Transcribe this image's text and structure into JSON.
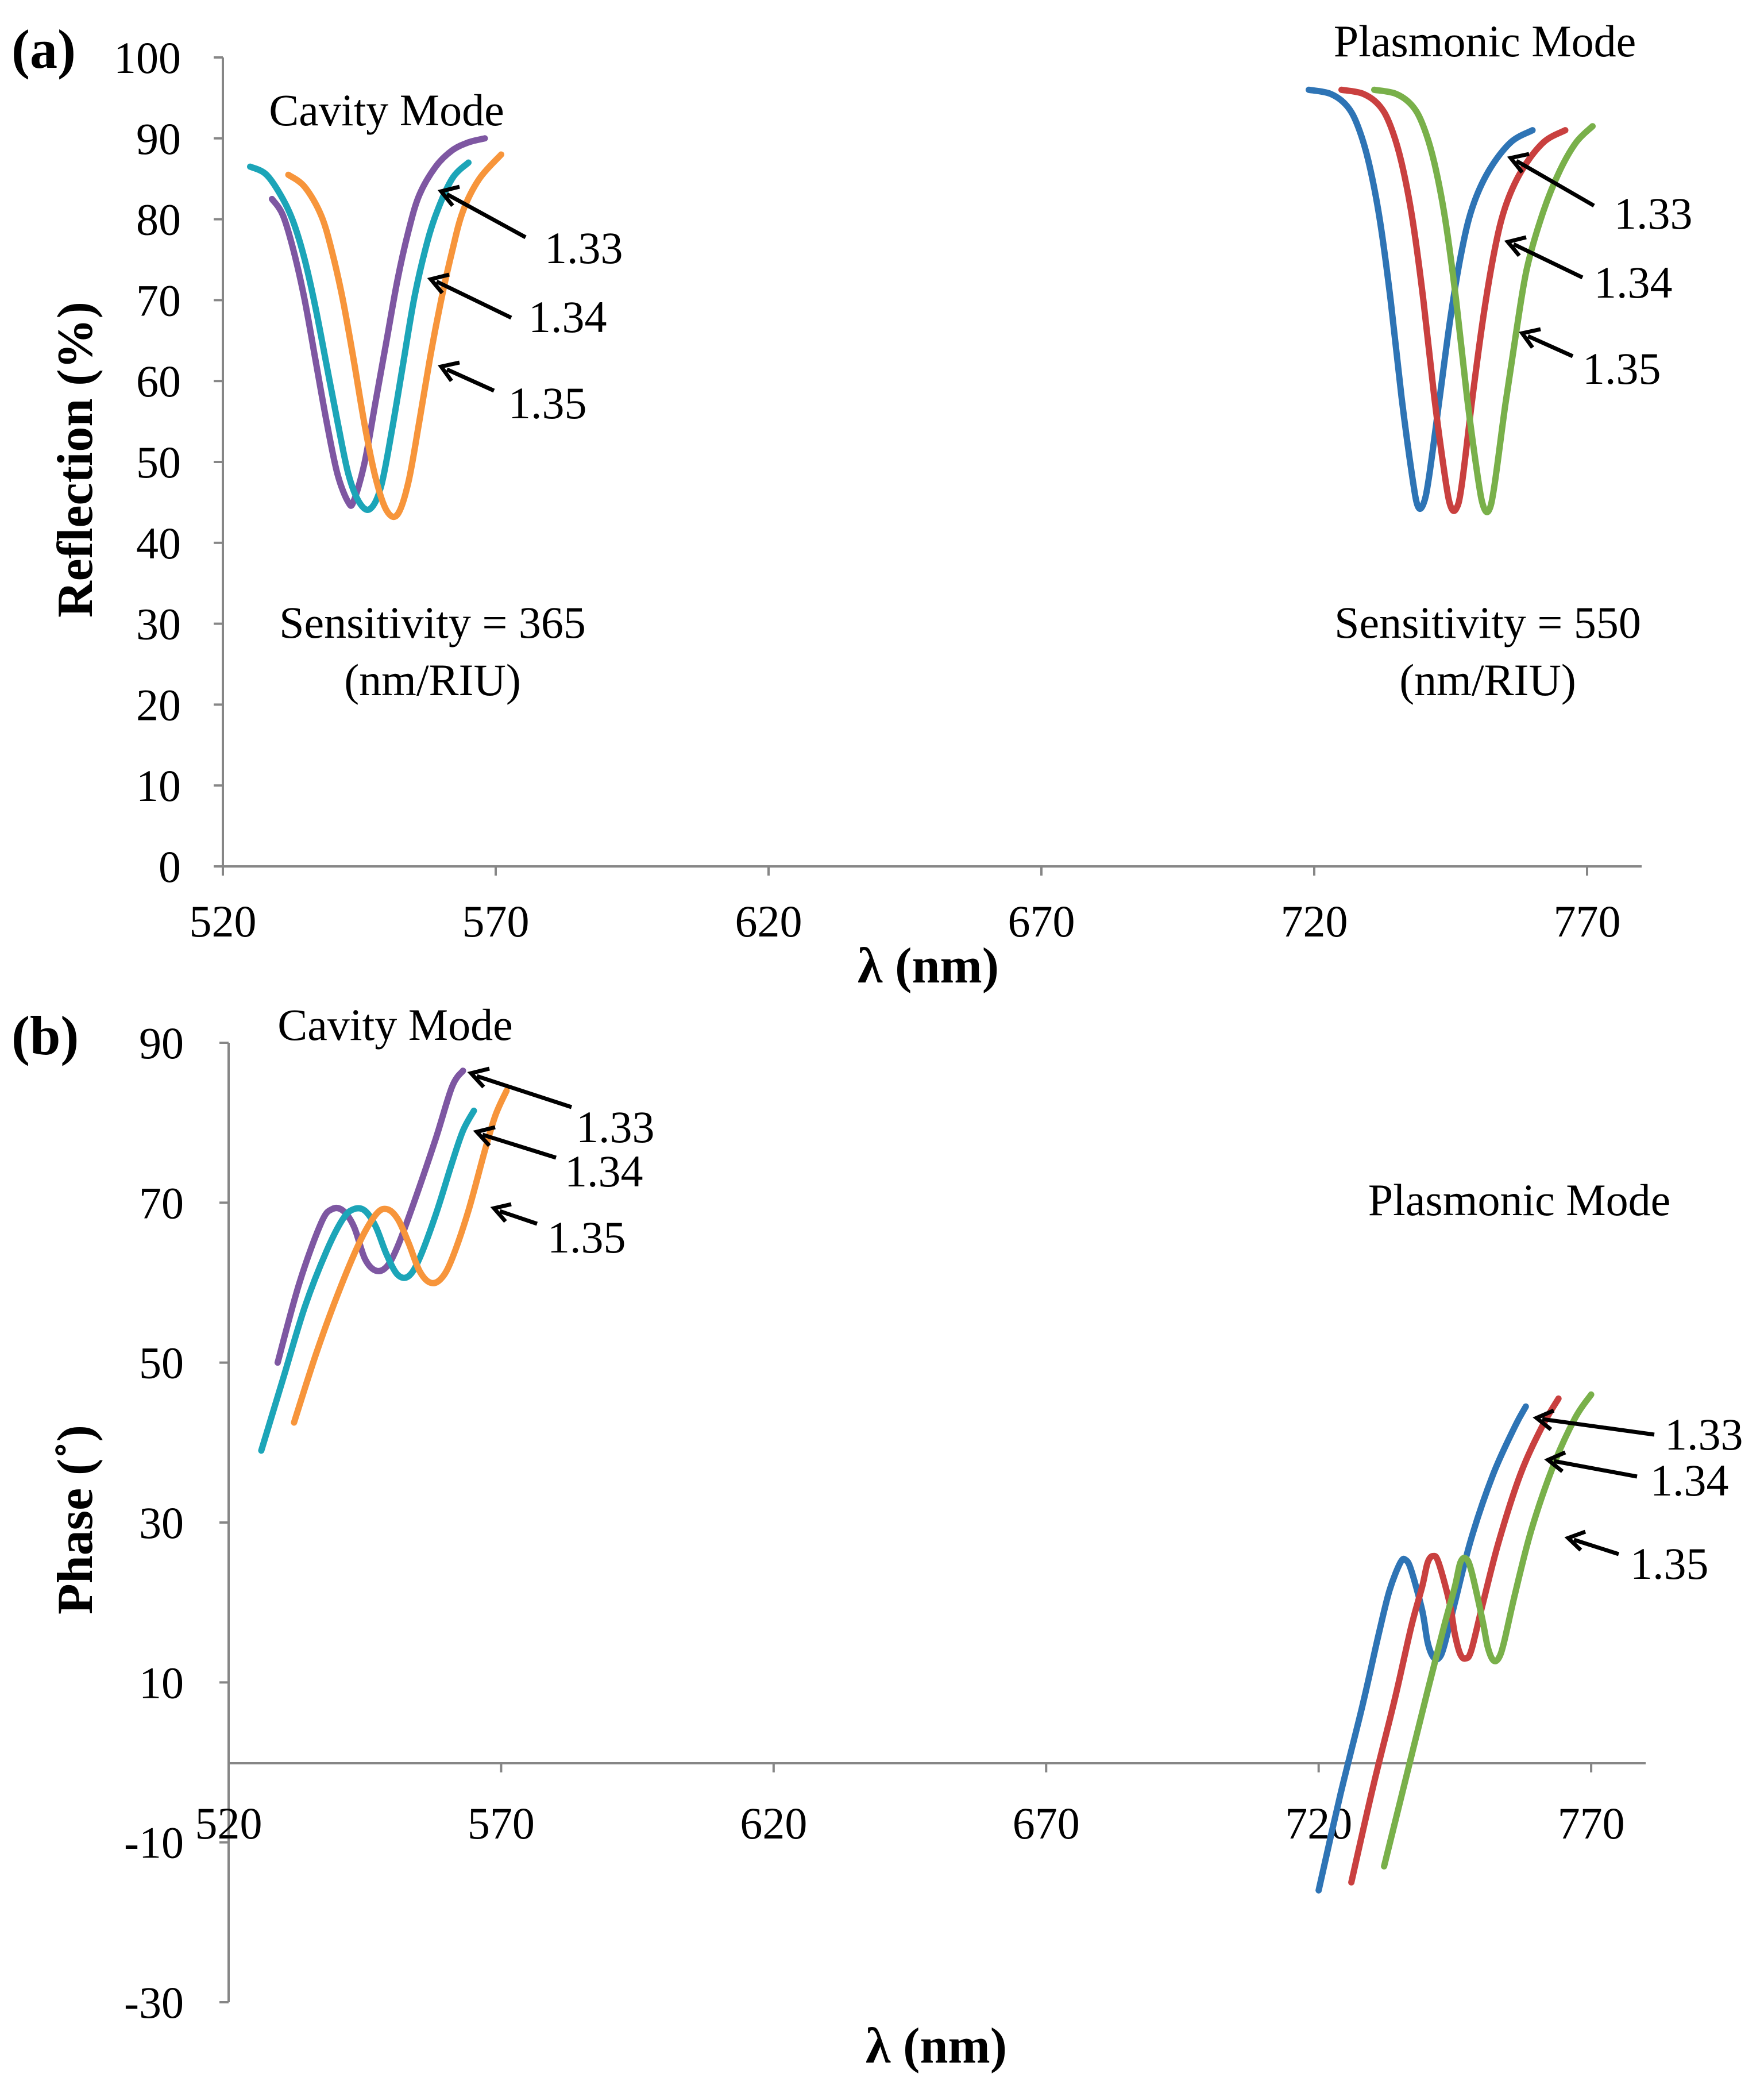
{
  "chart_data": [
    {
      "type": "line",
      "panel_label": "(a)",
      "xlabel": "λ (nm)",
      "ylabel": "Reflection (%)",
      "xlim": [
        520,
        780
      ],
      "ylim": [
        0,
        100
      ],
      "x_ticks": [
        520,
        570,
        620,
        670,
        720,
        770
      ],
      "y_ticks": [
        0,
        10,
        20,
        30,
        40,
        50,
        60,
        70,
        80,
        90,
        100
      ],
      "series": [
        {
          "name": "Cavity 1.33",
          "color": "#7e57a2",
          "points": [
            [
              529,
              82.5
            ],
            [
              531,
              80.5
            ],
            [
              533,
              76
            ],
            [
              535,
              70
            ],
            [
              537,
              62.5
            ],
            [
              539,
              55
            ],
            [
              541,
              48.5
            ],
            [
              543,
              45
            ],
            [
              544,
              45.2
            ],
            [
              546,
              50
            ],
            [
              548,
              57.5
            ],
            [
              550,
              65
            ],
            [
              552,
              72.5
            ],
            [
              554,
              78.5
            ],
            [
              556,
              83
            ],
            [
              559,
              86.5
            ],
            [
              562,
              88.5
            ],
            [
              565,
              89.5
            ],
            [
              568,
              90
            ]
          ]
        },
        {
          "name": "Cavity 1.34",
          "color": "#1ca5b8",
          "points": [
            [
              525,
              86.5
            ],
            [
              528,
              85.5
            ],
            [
              531,
              82.5
            ],
            [
              533,
              79.5
            ],
            [
              535,
              75
            ],
            [
              537,
              69
            ],
            [
              539,
              62
            ],
            [
              541,
              55
            ],
            [
              543,
              48.5
            ],
            [
              545,
              45
            ],
            [
              547,
              44.2
            ],
            [
              549,
              47
            ],
            [
              551,
              54
            ],
            [
              553,
              62
            ],
            [
              555,
              70
            ],
            [
              557,
              76
            ],
            [
              559,
              80.5
            ],
            [
              562,
              85
            ],
            [
              565,
              87
            ]
          ]
        },
        {
          "name": "Cavity 1.35",
          "color": "#f7953b",
          "points": [
            [
              532,
              85.5
            ],
            [
              535,
              84
            ],
            [
              538,
              80.5
            ],
            [
              540,
              76
            ],
            [
              542,
              70
            ],
            [
              544,
              62.5
            ],
            [
              546,
              54.5
            ],
            [
              548,
              48
            ],
            [
              550,
              44
            ],
            [
              552,
              43.5
            ],
            [
              554,
              47.5
            ],
            [
              556,
              55
            ],
            [
              558,
              63
            ],
            [
              560,
              70
            ],
            [
              562,
              76
            ],
            [
              564,
              81
            ],
            [
              567,
              85
            ],
            [
              571,
              88
            ]
          ]
        },
        {
          "name": "Plasmonic 1.33",
          "color": "#2e74b5",
          "points": [
            [
              719,
              96
            ],
            [
              723,
              95.5
            ],
            [
              726,
              94
            ],
            [
              728,
              91.5
            ],
            [
              730,
              87
            ],
            [
              732,
              80
            ],
            [
              734,
              70
            ],
            [
              736,
              58
            ],
            [
              738,
              48
            ],
            [
              739,
              44.5
            ],
            [
              740,
              44.8
            ],
            [
              741,
              48
            ],
            [
              743,
              58
            ],
            [
              745,
              68
            ],
            [
              747,
              76
            ],
            [
              749,
              81.5
            ],
            [
              752,
              86
            ],
            [
              756,
              89.5
            ],
            [
              760,
              91
            ]
          ]
        },
        {
          "name": "Plasmonic 1.34",
          "color": "#c9403f",
          "points": [
            [
              725,
              96
            ],
            [
              729,
              95.5
            ],
            [
              732,
              94
            ],
            [
              734,
              91.5
            ],
            [
              736,
              87
            ],
            [
              738,
              80
            ],
            [
              740,
              70
            ],
            [
              742,
              58
            ],
            [
              744,
              48
            ],
            [
              745,
              44.5
            ],
            [
              746,
              44.2
            ],
            [
              747,
              47
            ],
            [
              749,
              58
            ],
            [
              751,
              68
            ],
            [
              753,
              76
            ],
            [
              755,
              81.5
            ],
            [
              758,
              86
            ],
            [
              762,
              89.5
            ],
            [
              766,
              91
            ]
          ]
        },
        {
          "name": "Plasmonic 1.35",
          "color": "#79b04a",
          "points": [
            [
              731,
              96
            ],
            [
              735,
              95.5
            ],
            [
              738,
              94
            ],
            [
              740,
              91.5
            ],
            [
              742,
              87
            ],
            [
              744,
              80
            ],
            [
              746,
              70
            ],
            [
              748,
              58
            ],
            [
              750,
              48
            ],
            [
              751,
              44.5
            ],
            [
              752,
              44
            ],
            [
              753,
              47
            ],
            [
              755,
              57
            ],
            [
              757,
              66
            ],
            [
              759,
              74
            ],
            [
              762,
              81
            ],
            [
              765,
              86
            ],
            [
              768,
              89.5
            ],
            [
              771,
              91.5
            ]
          ]
        }
      ]
    },
    {
      "type": "line",
      "panel_label": "(b)",
      "xlabel": "λ (nm)",
      "ylabel": "Phase (˚)",
      "xlim": [
        520,
        780
      ],
      "ylim": [
        -30,
        90
      ],
      "x_ticks": [
        520,
        570,
        620,
        670,
        720,
        770
      ],
      "y_ticks": [
        -30,
        -10,
        10,
        30,
        50,
        70,
        90
      ],
      "series": [
        {
          "name": "Cavity 1.33",
          "color": "#7e57a2",
          "points": [
            [
              529,
              50
            ],
            [
              533,
              60
            ],
            [
              537,
              67.5
            ],
            [
              539,
              69.2
            ],
            [
              541,
              69
            ],
            [
              543,
              67
            ],
            [
              545,
              63
            ],
            [
              547,
              61.5
            ],
            [
              549,
              62
            ],
            [
              551,
              64.5
            ],
            [
              554,
              70
            ],
            [
              558,
              78
            ],
            [
              561,
              84.5
            ],
            [
              563,
              86.5
            ]
          ]
        },
        {
          "name": "Cavity 1.34",
          "color": "#1ca5b8",
          "points": [
            [
              526,
              39
            ],
            [
              530,
              48
            ],
            [
              534,
              57
            ],
            [
              538,
              64
            ],
            [
              541,
              68
            ],
            [
              543,
              69.2
            ],
            [
              545,
              69
            ],
            [
              547,
              67
            ],
            [
              549,
              63.5
            ],
            [
              551,
              61
            ],
            [
              553,
              60.8
            ],
            [
              555,
              63
            ],
            [
              558,
              68.5
            ],
            [
              561,
              75
            ],
            [
              563,
              79
            ],
            [
              565,
              81.5
            ]
          ]
        },
        {
          "name": "Cavity 1.35",
          "color": "#f7953b",
          "points": [
            [
              532,
              42.5
            ],
            [
              536,
              51
            ],
            [
              540,
              58.5
            ],
            [
              544,
              65
            ],
            [
              547,
              68.5
            ],
            [
              549,
              69.2
            ],
            [
              551,
              68
            ],
            [
              553,
              65
            ],
            [
              555,
              61.5
            ],
            [
              557,
              60
            ],
            [
              559,
              60.5
            ],
            [
              561,
              63
            ],
            [
              564,
              69
            ],
            [
              567,
              76.5
            ],
            [
              569,
              81
            ],
            [
              571,
              84
            ]
          ]
        },
        {
          "name": "Plasmonic 1.33",
          "color": "#2e74b5",
          "points": [
            [
              720,
              -16
            ],
            [
              724,
              -4
            ],
            [
              728,
              7
            ],
            [
              731,
              16
            ],
            [
              733,
              21.5
            ],
            [
              735,
              25
            ],
            [
              736,
              25.3
            ],
            [
              737,
              24
            ],
            [
              739,
              19
            ],
            [
              740,
              15
            ],
            [
              741,
              13.2
            ],
            [
              742,
              13
            ],
            [
              743,
              14.5
            ],
            [
              745,
              20
            ],
            [
              748,
              28
            ],
            [
              752,
              36
            ],
            [
              756,
              42
            ],
            [
              758,
              44.5
            ]
          ]
        },
        {
          "name": "Plasmonic 1.34",
          "color": "#c9403f",
          "points": [
            [
              726,
              -15
            ],
            [
              730,
              -3
            ],
            [
              734,
              8
            ],
            [
              737,
              17
            ],
            [
              739,
              22
            ],
            [
              740,
              25
            ],
            [
              741,
              25.8
            ],
            [
              742,
              25
            ],
            [
              744,
              20
            ],
            [
              745,
              16
            ],
            [
              746,
              13.5
            ],
            [
              747,
              13
            ],
            [
              748,
              14
            ],
            [
              750,
              19.5
            ],
            [
              753,
              27.5
            ],
            [
              757,
              36
            ],
            [
              761,
              42
            ],
            [
              764,
              45.5
            ]
          ]
        },
        {
          "name": "Plasmonic 1.35",
          "color": "#79b04a",
          "points": [
            [
              732,
              -13
            ],
            [
              736,
              -2
            ],
            [
              740,
              9
            ],
            [
              743,
              17
            ],
            [
              745,
              22
            ],
            [
              746,
              25
            ],
            [
              747,
              25.5
            ],
            [
              748,
              24
            ],
            [
              750,
              18
            ],
            [
              751,
              14.5
            ],
            [
              752,
              12.8
            ],
            [
              753,
              13
            ],
            [
              754,
              15
            ],
            [
              756,
              21
            ],
            [
              759,
              29
            ],
            [
              763,
              37
            ],
            [
              767,
              43
            ],
            [
              770,
              46
            ]
          ]
        }
      ]
    }
  ],
  "annotations": {
    "a_cavity_mode": "Cavity Mode",
    "a_plasmonic_mode": "Plasmonic Mode",
    "a_sens_left_1": "Sensitivity = 365",
    "a_sens_left_2": "(nm/RIU)",
    "a_sens_right_1": "Sensitivity = 550",
    "a_sens_right_2": "(nm/RIU)",
    "b_cavity_mode": "Cavity Mode",
    "b_plasmonic_mode": "Plasmonic Mode",
    "ri_133": "1.33",
    "ri_134": "1.34",
    "ri_135": "1.35"
  },
  "colors": {
    "purple": "#7e57a2",
    "teal": "#1ca5b8",
    "orange": "#f7953b",
    "blue": "#2e74b5",
    "red": "#c9403f",
    "green": "#79b04a"
  }
}
